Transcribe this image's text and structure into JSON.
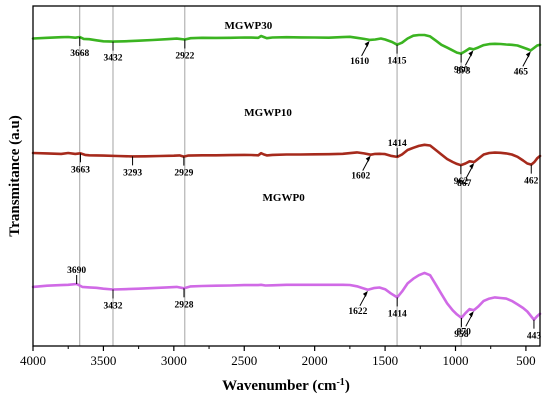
{
  "chart_data": {
    "type": "line",
    "title": "",
    "xlabel": "Wavenumber (cm",
    "xlabel_sup": "-1",
    "xlabel_end": ")",
    "ylabel": "Transmitance (a.u)",
    "xlim": [
      4000,
      400
    ],
    "x_reversed": true,
    "x_ticks": [
      4000,
      3500,
      3000,
      2500,
      2000,
      1500,
      1000,
      500
    ],
    "y_ticks_shown": false,
    "grid": false,
    "reference_lines": [
      3668,
      3432,
      2922,
      1415,
      960
    ],
    "series": [
      {
        "name": "MGWP30",
        "color": "#3bb421",
        "x": [
          4000,
          3900,
          3800,
          3750,
          3700,
          3668,
          3640,
          3600,
          3550,
          3500,
          3432,
          3350,
          3250,
          3150,
          3050,
          2980,
          2922,
          2880,
          2800,
          2700,
          2600,
          2500,
          2450,
          2400,
          2380,
          2360,
          2340,
          2300,
          2200,
          2100,
          2000,
          1900,
          1800,
          1750,
          1700,
          1650,
          1610,
          1570,
          1530,
          1500,
          1450,
          1415,
          1380,
          1340,
          1300,
          1260,
          1220,
          1180,
          1140,
          1100,
          1060,
          1020,
          990,
          960,
          930,
          900,
          873,
          840,
          800,
          760,
          720,
          680,
          640,
          600,
          560,
          520,
          490,
          465,
          440,
          420,
          400
        ],
        "values": [
          0.95,
          0.96,
          0.968,
          0.972,
          0.962,
          0.972,
          0.945,
          0.94,
          0.925,
          0.91,
          0.905,
          0.91,
          0.918,
          0.928,
          0.94,
          0.948,
          0.936,
          0.955,
          0.96,
          0.958,
          0.96,
          0.965,
          0.963,
          0.96,
          0.985,
          0.97,
          0.955,
          0.965,
          0.968,
          0.966,
          0.965,
          0.962,
          0.97,
          0.975,
          0.96,
          0.945,
          0.93,
          0.935,
          0.95,
          0.935,
          0.9,
          0.862,
          0.89,
          0.95,
          0.99,
          1.0,
          1.0,
          0.98,
          0.92,
          0.86,
          0.82,
          0.78,
          0.748,
          0.735,
          0.77,
          0.808,
          0.795,
          0.82,
          0.855,
          0.87,
          0.875,
          0.872,
          0.865,
          0.86,
          0.85,
          0.822,
          0.8,
          0.78,
          0.82,
          0.85,
          0.86
        ]
      },
      {
        "name": "MGWP10",
        "color": "#a62a1c",
        "x": [
          4000,
          3900,
          3800,
          3750,
          3700,
          3663,
          3630,
          3600,
          3550,
          3500,
          3400,
          3293,
          3200,
          3100,
          3000,
          2960,
          2929,
          2900,
          2800,
          2700,
          2600,
          2500,
          2450,
          2400,
          2380,
          2360,
          2340,
          2300,
          2200,
          2100,
          2000,
          1900,
          1800,
          1700,
          1650,
          1602,
          1570,
          1540,
          1500,
          1460,
          1414,
          1380,
          1340,
          1300,
          1260,
          1220,
          1180,
          1140,
          1100,
          1060,
          1020,
          990,
          962,
          930,
          900,
          867,
          840,
          800,
          760,
          720,
          680,
          640,
          600,
          560,
          520,
          490,
          462,
          440,
          420,
          400
        ],
        "values": [
          0.56,
          0.555,
          0.548,
          0.56,
          0.548,
          0.556,
          0.535,
          0.53,
          0.528,
          0.525,
          0.52,
          0.515,
          0.516,
          0.52,
          0.524,
          0.528,
          0.512,
          0.526,
          0.53,
          0.53,
          0.532,
          0.535,
          0.533,
          0.53,
          0.558,
          0.54,
          0.528,
          0.535,
          0.54,
          0.54,
          0.542,
          0.544,
          0.55,
          0.568,
          0.555,
          0.538,
          0.548,
          0.55,
          0.545,
          0.522,
          0.508,
          0.54,
          0.6,
          0.63,
          0.655,
          0.67,
          0.66,
          0.6,
          0.54,
          0.48,
          0.44,
          0.415,
          0.398,
          0.42,
          0.45,
          0.44,
          0.48,
          0.54,
          0.56,
          0.565,
          0.562,
          0.555,
          0.54,
          0.51,
          0.46,
          0.42,
          0.405,
          0.44,
          0.49,
          0.52
        ]
      },
      {
        "name": "MGWP0",
        "color": "#d06ae6",
        "x": [
          4000,
          3900,
          3800,
          3750,
          3690,
          3650,
          3600,
          3550,
          3500,
          3432,
          3350,
          3250,
          3150,
          3050,
          2980,
          2928,
          2880,
          2800,
          2700,
          2600,
          2500,
          2400,
          2380,
          2350,
          2300,
          2200,
          2100,
          2000,
          1900,
          1800,
          1750,
          1700,
          1660,
          1622,
          1580,
          1540,
          1500,
          1460,
          1414,
          1380,
          1340,
          1300,
          1260,
          1220,
          1180,
          1140,
          1100,
          1060,
          1020,
          990,
          958,
          930,
          900,
          870,
          840,
          800,
          760,
          720,
          680,
          640,
          600,
          560,
          520,
          490,
          443,
          420,
          400
        ],
        "values": [
          0.3,
          0.31,
          0.315,
          0.318,
          0.325,
          0.3,
          0.296,
          0.292,
          0.285,
          0.278,
          0.28,
          0.285,
          0.29,
          0.296,
          0.3,
          0.288,
          0.304,
          0.308,
          0.31,
          0.312,
          0.315,
          0.315,
          0.318,
          0.312,
          0.314,
          0.318,
          0.318,
          0.318,
          0.318,
          0.318,
          0.316,
          0.305,
          0.29,
          0.275,
          0.29,
          0.295,
          0.28,
          0.245,
          0.21,
          0.26,
          0.33,
          0.37,
          0.4,
          0.42,
          0.4,
          0.32,
          0.24,
          0.16,
          0.1,
          0.065,
          0.035,
          0.075,
          0.11,
          0.1,
          0.13,
          0.18,
          0.2,
          0.21,
          0.205,
          0.2,
          0.18,
          0.15,
          0.12,
          0.09,
          0.02,
          0.05,
          0.07
        ]
      }
    ],
    "annotations": [
      {
        "series": "MGWP30",
        "text": "3668",
        "x": 3668,
        "dir": "below",
        "arrow": false
      },
      {
        "series": "MGWP30",
        "text": "3432",
        "x": 3432,
        "dir": "below",
        "arrow": false
      },
      {
        "series": "MGWP30",
        "text": "2922",
        "x": 2922,
        "dir": "below",
        "arrow": false
      },
      {
        "series": "MGWP30",
        "text": "1610",
        "x": 1610,
        "dir": "below",
        "arrow": true
      },
      {
        "series": "MGWP30",
        "text": "1415",
        "x": 1415,
        "dir": "below",
        "arrow": false
      },
      {
        "series": "MGWP30",
        "text": "960",
        "x": 960,
        "dir": "below",
        "arrow": false
      },
      {
        "series": "MGWP30",
        "text": "873",
        "x": 873,
        "dir": "below",
        "arrow": true
      },
      {
        "series": "MGWP30",
        "text": "465",
        "x": 465,
        "dir": "below",
        "arrow": true
      },
      {
        "series": "MGWP10",
        "text": "3663",
        "x": 3663,
        "dir": "below",
        "arrow": false
      },
      {
        "series": "MGWP10",
        "text": "3293",
        "x": 3293,
        "dir": "below",
        "arrow": false
      },
      {
        "series": "MGWP10",
        "text": "2929",
        "x": 2929,
        "dir": "below",
        "arrow": false
      },
      {
        "series": "MGWP10",
        "text": "1602",
        "x": 1602,
        "dir": "below",
        "arrow": true
      },
      {
        "series": "MGWP10",
        "text": "1414",
        "x": 1414,
        "dir": "above",
        "arrow": false
      },
      {
        "series": "MGWP10",
        "text": "962",
        "x": 962,
        "dir": "below",
        "arrow": false
      },
      {
        "series": "MGWP10",
        "text": "867",
        "x": 867,
        "dir": "below",
        "arrow": true
      },
      {
        "series": "MGWP10",
        "text": "462",
        "x": 462,
        "dir": "below",
        "arrow": false
      },
      {
        "series": "MGWP0",
        "text": "3690",
        "x": 3690,
        "dir": "above",
        "arrow": false
      },
      {
        "series": "MGWP0",
        "text": "3432",
        "x": 3432,
        "dir": "below",
        "arrow": false
      },
      {
        "series": "MGWP0",
        "text": "2928",
        "x": 2928,
        "dir": "below",
        "arrow": false
      },
      {
        "series": "MGWP0",
        "text": "1622",
        "x": 1622,
        "dir": "below",
        "arrow": true
      },
      {
        "series": "MGWP0",
        "text": "1414",
        "x": 1414,
        "dir": "below",
        "arrow": false
      },
      {
        "series": "MGWP0",
        "text": "958",
        "x": 958,
        "dir": "below",
        "arrow": false
      },
      {
        "series": "MGWP0",
        "text": "870",
        "x": 870,
        "dir": "below",
        "arrow": true
      },
      {
        "series": "MGWP0",
        "text": "443",
        "x": 443,
        "dir": "below",
        "arrow": false
      }
    ]
  }
}
